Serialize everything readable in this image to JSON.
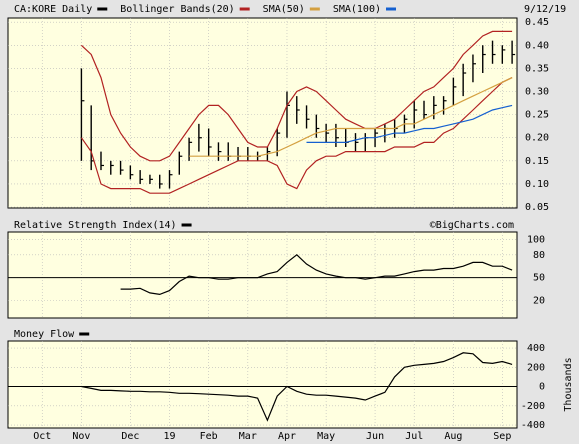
{
  "chart_data": [
    {
      "type": "hlc",
      "date": "9/12/19",
      "categories": [
        null,
        null,
        null,
        "Oct",
        null,
        null,
        null,
        "Nov",
        null,
        null,
        null,
        null,
        "Dec",
        null,
        null,
        null,
        "19",
        null,
        null,
        null,
        "Feb",
        null,
        null,
        null,
        "Mar",
        null,
        null,
        null,
        "Apr",
        null,
        null,
        null,
        "May",
        null,
        null,
        null,
        null,
        "Jun",
        null,
        null,
        null,
        "Jul",
        null,
        null,
        null,
        "Aug",
        null,
        null,
        null,
        null,
        "Sep",
        null
      ],
      "series": [
        {
          "name": "CA:KORE Daily",
          "color": "#000000",
          "high": [
            null,
            null,
            null,
            null,
            null,
            null,
            null,
            0.35,
            0.27,
            0.17,
            0.15,
            0.15,
            0.14,
            0.13,
            0.12,
            0.12,
            0.13,
            0.17,
            0.2,
            0.23,
            0.22,
            0.19,
            0.19,
            0.18,
            0.18,
            0.17,
            0.18,
            0.22,
            0.3,
            0.29,
            0.27,
            0.25,
            0.23,
            0.23,
            0.22,
            0.21,
            0.21,
            0.22,
            0.23,
            0.24,
            0.25,
            0.28,
            0.28,
            0.29,
            0.29,
            0.33,
            0.36,
            0.38,
            0.4,
            0.41,
            0.4,
            0.41
          ],
          "low": [
            null,
            null,
            null,
            null,
            null,
            null,
            null,
            0.15,
            0.13,
            0.13,
            0.12,
            0.12,
            0.11,
            0.1,
            0.1,
            0.09,
            0.09,
            0.12,
            0.15,
            0.17,
            0.16,
            0.15,
            0.15,
            0.15,
            0.15,
            0.15,
            0.15,
            0.16,
            0.2,
            0.23,
            0.22,
            0.2,
            0.19,
            0.18,
            0.18,
            0.17,
            0.17,
            0.18,
            0.19,
            0.2,
            0.21,
            0.22,
            0.24,
            0.24,
            0.25,
            0.27,
            0.29,
            0.32,
            0.34,
            0.36,
            0.36,
            0.36
          ],
          "close": [
            null,
            null,
            null,
            null,
            null,
            null,
            null,
            0.28,
            0.15,
            0.14,
            0.14,
            0.13,
            0.12,
            0.11,
            0.11,
            0.1,
            0.12,
            0.16,
            0.19,
            0.2,
            0.18,
            0.17,
            0.16,
            0.16,
            0.16,
            0.16,
            0.17,
            0.21,
            0.27,
            0.26,
            0.24,
            0.22,
            0.21,
            0.2,
            0.19,
            0.19,
            0.2,
            0.21,
            0.22,
            0.22,
            0.24,
            0.26,
            0.25,
            0.27,
            0.28,
            0.31,
            0.34,
            0.36,
            0.38,
            0.38,
            0.39,
            0.38
          ]
        },
        {
          "name": "Bollinger Bands(20)",
          "color": "#b22222",
          "values": [
            null,
            null,
            null,
            null,
            null,
            null,
            null,
            0.4,
            0.38,
            0.33,
            0.25,
            0.21,
            0.18,
            0.16,
            0.15,
            0.15,
            0.16,
            0.19,
            0.22,
            0.25,
            0.27,
            0.27,
            0.25,
            0.22,
            0.19,
            0.18,
            0.18,
            0.22,
            0.27,
            0.3,
            0.31,
            0.3,
            0.28,
            0.26,
            0.24,
            0.23,
            0.22,
            0.22,
            0.23,
            0.24,
            0.26,
            0.28,
            0.3,
            0.31,
            0.33,
            0.35,
            0.38,
            0.4,
            0.42,
            0.43,
            0.43,
            0.43
          ],
          "lower": [
            null,
            null,
            null,
            null,
            null,
            null,
            null,
            0.2,
            0.17,
            0.1,
            0.09,
            0.09,
            0.09,
            0.09,
            0.08,
            0.08,
            0.08,
            0.09,
            0.1,
            0.11,
            0.12,
            0.13,
            0.14,
            0.15,
            0.15,
            0.15,
            0.15,
            0.14,
            0.1,
            0.09,
            0.13,
            0.15,
            0.16,
            0.16,
            0.17,
            0.17,
            0.17,
            0.17,
            0.17,
            0.18,
            0.18,
            0.18,
            0.19,
            0.19,
            0.21,
            0.22,
            0.24,
            0.26,
            0.28,
            0.3,
            0.32,
            0.33
          ]
        },
        {
          "name": "SMA(50)",
          "color": "#d4a040",
          "values": [
            null,
            null,
            null,
            null,
            null,
            null,
            null,
            null,
            null,
            null,
            null,
            null,
            null,
            null,
            null,
            null,
            null,
            null,
            0.16,
            0.16,
            0.16,
            0.16,
            0.16,
            0.16,
            0.16,
            0.16,
            0.165,
            0.17,
            0.18,
            0.19,
            0.2,
            0.21,
            0.215,
            0.22,
            0.22,
            0.22,
            0.22,
            0.22,
            0.22,
            0.22,
            0.23,
            0.23,
            0.24,
            0.25,
            0.26,
            0.27,
            0.28,
            0.29,
            0.3,
            0.31,
            0.32,
            0.33
          ]
        },
        {
          "name": "SMA(100)",
          "color": "#1560d0",
          "values": [
            null,
            null,
            null,
            null,
            null,
            null,
            null,
            null,
            null,
            null,
            null,
            null,
            null,
            null,
            null,
            null,
            null,
            null,
            null,
            null,
            null,
            null,
            null,
            null,
            null,
            null,
            null,
            null,
            null,
            null,
            0.19,
            0.19,
            0.19,
            0.19,
            0.19,
            0.195,
            0.2,
            0.2,
            0.205,
            0.21,
            0.21,
            0.215,
            0.22,
            0.22,
            0.225,
            0.23,
            0.235,
            0.24,
            0.25,
            0.26,
            0.265,
            0.27
          ]
        }
      ],
      "ylim": [
        0.048,
        0.459
      ],
      "yticks": [
        0.05,
        {
          "value": 0.1,
          "label": "0.10"
        },
        0.15,
        {
          "value": 0.2,
          "label": "0.20"
        },
        0.25,
        {
          "value": 0.3,
          "label": "0.30"
        },
        0.35,
        {
          "value": 0.4,
          "label": "0.40"
        },
        0.45
      ],
      "grid": true
    },
    {
      "type": "line",
      "annotation": "©BigCharts.com",
      "series": [
        {
          "name": "Relative Strength Index(14)",
          "color": "#000000",
          "values": [
            null,
            null,
            null,
            null,
            null,
            null,
            null,
            null,
            null,
            null,
            null,
            35,
            35,
            36,
            30,
            28,
            33,
            45,
            52,
            50,
            50,
            48,
            48,
            50,
            50,
            50,
            55,
            58,
            70,
            80,
            68,
            60,
            55,
            52,
            50,
            50,
            48,
            50,
            52,
            52,
            55,
            58,
            60,
            60,
            62,
            62,
            65,
            70,
            70,
            65,
            65,
            60
          ]
        }
      ],
      "ref_line": 50,
      "ylim": [
        -3,
        110
      ],
      "yticks": [
        20,
        50,
        80,
        100
      ],
      "grid": true
    },
    {
      "type": "line",
      "y_label": "Thousands",
      "series": [
        {
          "name": "Money Flow",
          "color": "#000000",
          "values": [
            null,
            null,
            null,
            null,
            null,
            null,
            null,
            0,
            -20,
            -40,
            -40,
            -45,
            -50,
            -50,
            -55,
            -55,
            -60,
            -70,
            -70,
            -75,
            -80,
            -85,
            -90,
            -100,
            -100,
            -120,
            -350,
            -100,
            0,
            -50,
            -80,
            -90,
            -90,
            -100,
            -110,
            -120,
            -140,
            -100,
            -60,
            100,
            200,
            220,
            230,
            240,
            260,
            300,
            350,
            340,
            250,
            240,
            260,
            230
          ]
        }
      ],
      "ref_line": 0,
      "ylim": [
        -431,
        473
      ],
      "yticks": [
        400,
        200,
        0,
        -200,
        -400
      ],
      "grid": true
    }
  ]
}
